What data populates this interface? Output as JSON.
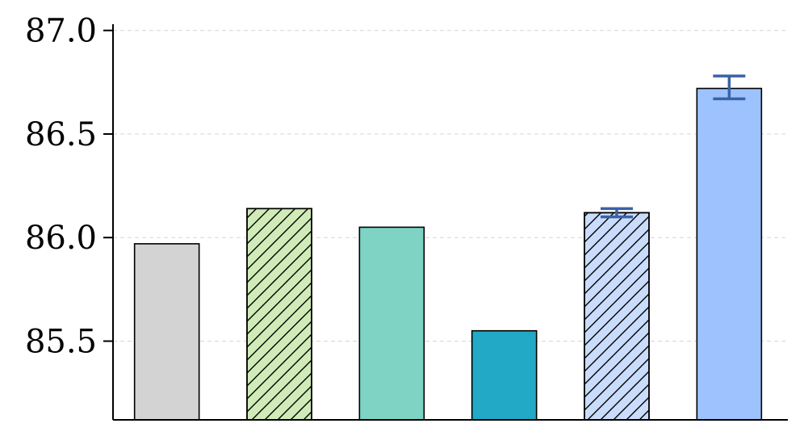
{
  "chart_data": {
    "type": "bar",
    "title": "",
    "xlabel": "",
    "ylabel": "",
    "ylim": [
      85.12,
      87.03
    ],
    "yticks": [
      85.5,
      86.0,
      86.5,
      87.0
    ],
    "ytick_labels": [
      "85.5",
      "86.0",
      "86.5",
      "87.0"
    ],
    "grid": "horizontal dashed",
    "bars": [
      {
        "value": 85.97,
        "color": "#d3d3d3",
        "hatch": false,
        "error": null
      },
      {
        "value": 86.14,
        "color": "#d0ebb7",
        "hatch": true,
        "error": null
      },
      {
        "value": 86.05,
        "color": "#7fd3c4",
        "hatch": false,
        "error": null
      },
      {
        "value": 85.55,
        "color": "#21a9c6",
        "hatch": false,
        "error": null
      },
      {
        "value": 86.12,
        "color": "#c9dcfc",
        "hatch": true,
        "error": [
          86.1,
          86.14
        ]
      },
      {
        "value": 86.72,
        "color": "#9dc2fd",
        "hatch": false,
        "error": [
          86.67,
          86.78
        ]
      }
    ],
    "error_color": "#3a62a6"
  }
}
